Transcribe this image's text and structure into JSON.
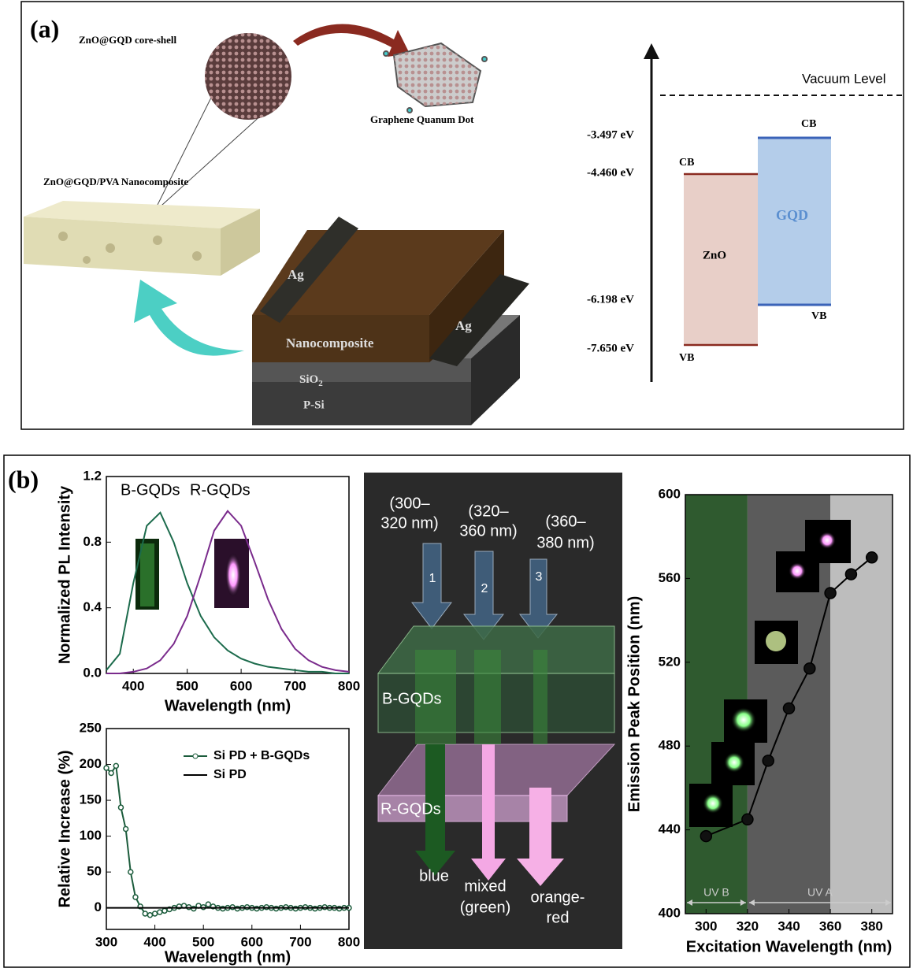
{
  "panel_a": {
    "label": "(a)",
    "core_shell": "ZnO@GQD core-shell",
    "gqd": "Graphene Quanum Dot",
    "nanocomposite_film": "ZnO@GQD/PVA Nanocomposite",
    "device": {
      "ag_left": "Ag",
      "ag_right": "Ag",
      "layer": "Nanocomposite",
      "oxide": "SiO",
      "oxide_sub": "2",
      "substrate": "P-Si"
    },
    "energy": {
      "vacuum": "Vacuum Level",
      "levels": [
        "-3.497 eV",
        "-4.460 eV",
        "-6.198 eV",
        "-7.650 eV"
      ],
      "zno": {
        "name": "ZnO",
        "cb": "CB",
        "vb": "VB"
      },
      "gqd": {
        "name": "GQD",
        "cb": "CB",
        "vb": "VB"
      }
    }
  },
  "panel_b": {
    "label": "(b)",
    "schematic": {
      "bands": [
        [
          "(300–",
          "320 nm)"
        ],
        [
          "(320–",
          "360 nm)"
        ],
        [
          "(360–",
          "380 nm)"
        ]
      ],
      "numbers": [
        "1",
        "2",
        "3"
      ],
      "layers": [
        "B-GQDs",
        "R-GQDs"
      ],
      "outputs": [
        [
          "blue"
        ],
        [
          "mixed",
          "(green)"
        ],
        [
          "orange-",
          "red"
        ]
      ]
    }
  },
  "chart_data": [
    {
      "type": "line",
      "xlabel": "Wavelength (nm)",
      "ylabel": "Normalized PL Intensity",
      "xlim": [
        350,
        800
      ],
      "ylim": [
        0,
        1.2
      ],
      "xticks": [
        400,
        500,
        600,
        700,
        800
      ],
      "yticks": [
        {
          "value": 0,
          "label": "0.0"
        },
        0.4,
        0.8,
        1.2
      ],
      "legend": "upper left",
      "x": [
        350,
        375,
        400,
        425,
        450,
        475,
        500,
        525,
        550,
        575,
        600,
        625,
        650,
        675,
        700,
        725,
        750,
        775,
        800
      ],
      "series": [
        {
          "name": "B-GQDs",
          "color": "#1c6b4c",
          "values": [
            0.02,
            0.12,
            0.55,
            0.9,
            0.98,
            0.8,
            0.55,
            0.35,
            0.22,
            0.14,
            0.09,
            0.06,
            0.04,
            0.03,
            0.02,
            0.01,
            0.01,
            0,
            0
          ]
        },
        {
          "name": "R-GQDs",
          "color": "#7a2b8c",
          "values": [
            0,
            0,
            0.01,
            0.03,
            0.08,
            0.18,
            0.35,
            0.6,
            0.87,
            0.99,
            0.9,
            0.68,
            0.45,
            0.27,
            0.15,
            0.08,
            0.04,
            0.02,
            0.01
          ]
        }
      ]
    },
    {
      "type": "line",
      "xlabel": "Wavelength (nm)",
      "ylabel": "Relative Increase (%)",
      "xlim": [
        300,
        800
      ],
      "ylim": [
        -30,
        250
      ],
      "xticks": [
        300,
        400,
        500,
        600,
        700,
        800
      ],
      "yticks": [
        0,
        50,
        100,
        150,
        200,
        250
      ],
      "legend": "upper right",
      "series": [
        {
          "name": "Si PD + B-GQDs",
          "color": "#1c5c3c",
          "marker": "circle",
          "x": [
            300,
            310,
            320,
            330,
            340,
            350,
            360,
            370,
            380,
            390,
            400,
            410,
            420,
            430,
            440,
            450,
            460,
            470,
            480,
            490,
            500,
            510,
            520,
            530,
            540,
            550,
            560,
            570,
            580,
            590,
            600,
            610,
            620,
            630,
            640,
            650,
            660,
            670,
            680,
            690,
            700,
            710,
            720,
            730,
            740,
            750,
            760,
            770,
            780,
            790,
            800
          ],
          "values": [
            195,
            188,
            198,
            140,
            110,
            50,
            15,
            2,
            -8,
            -10,
            -8,
            -6,
            -4,
            -2,
            0,
            2,
            3,
            1,
            -1,
            3,
            1,
            5,
            2,
            0,
            -1,
            0,
            1,
            -1,
            0,
            1,
            0,
            -1,
            0,
            1,
            0,
            -1,
            0,
            1,
            0,
            -1,
            0,
            1,
            0,
            -1,
            0,
            1,
            0,
            0,
            -1,
            0,
            0
          ]
        },
        {
          "name": "Si PD",
          "color": "#000000",
          "x": [
            300,
            800
          ],
          "values": [
            0,
            0
          ]
        }
      ]
    },
    {
      "type": "line",
      "xlabel": "Excitation Wavelength (nm)",
      "ylabel": "Emission Peak Position (nm)",
      "xlim": [
        290,
        390
      ],
      "ylim": [
        400,
        600
      ],
      "xticks": [
        300,
        320,
        340,
        360,
        380
      ],
      "yticks": [
        400,
        440,
        480,
        520,
        560,
        600
      ],
      "bands": [
        {
          "range": [
            290,
            320
          ],
          "color": "#2f5a2f"
        },
        {
          "range": [
            320,
            360
          ],
          "color": "#5b5b5b"
        },
        {
          "range": [
            360,
            390
          ],
          "color": "#bdbdbd"
        }
      ],
      "spans": [
        {
          "label": "UV B",
          "range": [
            290,
            320
          ]
        },
        {
          "label": "UV A",
          "range": [
            320,
            390
          ]
        }
      ],
      "x": [
        300,
        320,
        330,
        340,
        350,
        360,
        370,
        380
      ],
      "series": [
        {
          "color": "#000000",
          "marker": "circle",
          "values": [
            437,
            445,
            473,
            498,
            517,
            553,
            562,
            570
          ]
        }
      ]
    }
  ]
}
